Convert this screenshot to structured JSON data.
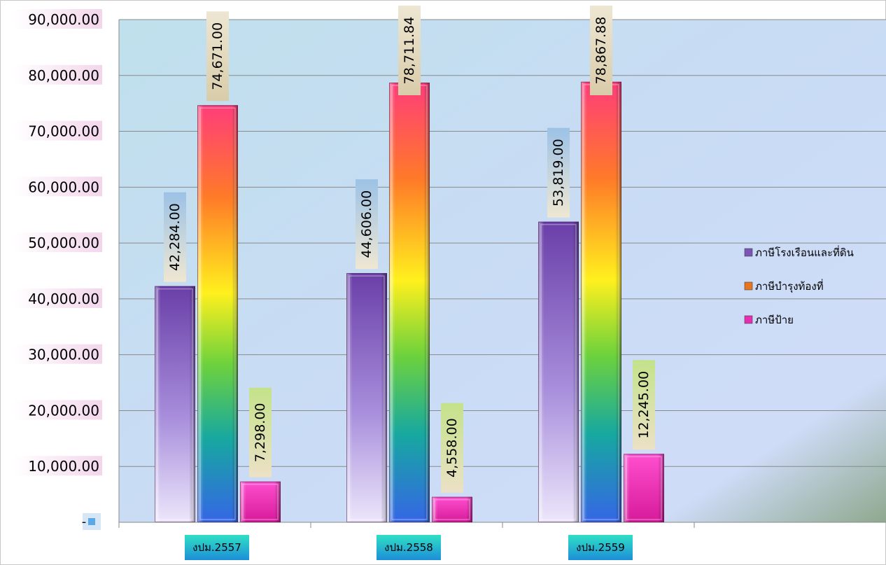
{
  "chart_data": {
    "type": "bar",
    "title": "",
    "xlabel": "",
    "ylabel": "",
    "categories": [
      "งปม.2557",
      "งปม.2558",
      "งปม.2559"
    ],
    "series": [
      {
        "name": "ภาษีโรงเรือนและที่ดิน",
        "values": [
          42284.0,
          44606.0,
          53819.0
        ],
        "labels": [
          "42,284.00",
          "44,606.00",
          "53,819.00"
        ],
        "color": "#7a55b3"
      },
      {
        "name": "ภาษีบำรุงท้องที่",
        "values": [
          74671.0,
          78711.84,
          78867.88
        ],
        "labels": [
          "74,671.00",
          "78,711.84",
          "78,867.88"
        ],
        "color": "#e8741e"
      },
      {
        "name": "ภาษีป้าย",
        "values": [
          7298.0,
          4558.0,
          12245.0
        ],
        "labels": [
          "7,298.00",
          "4,558.00",
          "12,245.00"
        ],
        "color": "#e62fb0"
      }
    ],
    "ylim": [
      0,
      90000
    ],
    "yticks": [
      0,
      10000,
      20000,
      30000,
      40000,
      50000,
      60000,
      70000,
      80000,
      90000
    ],
    "ytick_labels": [
      "-",
      "10,000.00",
      "20,000.00",
      "30,000.00",
      "40,000.00",
      "50,000.00",
      "60,000.00",
      "70,000.00",
      "80,000.00",
      "90,000.00"
    ],
    "grid": true,
    "legend_position": "right"
  }
}
